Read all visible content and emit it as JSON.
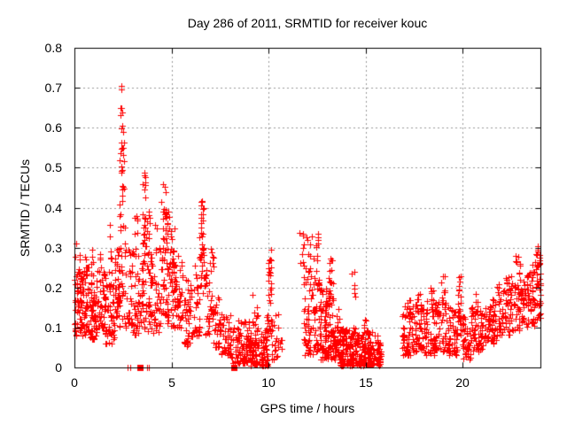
{
  "chart_data": {
    "type": "scatter",
    "title": "Day 286 of 2011, SRMTID for receiver kouc",
    "xlabel": "GPS time / hours",
    "ylabel": "SRMTID / TECUs",
    "xlim": [
      0,
      24
    ],
    "ylim": [
      0,
      0.8
    ],
    "xticks": [
      0,
      5,
      10,
      15,
      20
    ],
    "xticklabels": [
      "0",
      "5",
      "10",
      "15",
      "20"
    ],
    "yticks": [
      0,
      0.1,
      0.2,
      0.3,
      0.4,
      0.5,
      0.6,
      0.7,
      0.8
    ],
    "yticklabels": [
      "0",
      "0.1",
      "0.2",
      "0.3",
      "0.4",
      "0.5",
      "0.6",
      "0.7",
      "0.8"
    ],
    "grid": true,
    "legend": "none",
    "marker": "plus",
    "marker_size_px": 7,
    "marker_color": "#ff0000",
    "grid_color": "#999999",
    "border_color": "#000000",
    "text_color": "#000000",
    "background": "#ffffff",
    "seed": 20110286,
    "clusters": [
      [
        0.0,
        0.35,
        55,
        0.08,
        0.24,
        1.5
      ],
      [
        0.05,
        0.3,
        5,
        0.24,
        0.31,
        1
      ],
      [
        0.35,
        0.75,
        50,
        0.08,
        0.25,
        1.5
      ],
      [
        0.5,
        0.7,
        5,
        0.22,
        0.28,
        1
      ],
      [
        0.75,
        1.15,
        55,
        0.07,
        0.22,
        1.5
      ],
      [
        0.85,
        1.05,
        6,
        0.22,
        0.3,
        1
      ],
      [
        1.15,
        1.6,
        45,
        0.1,
        0.25,
        1.4
      ],
      [
        1.3,
        1.5,
        4,
        0.25,
        0.29,
        1
      ],
      [
        1.6,
        2.05,
        50,
        0.06,
        0.21,
        1.4
      ],
      [
        1.78,
        1.92,
        10,
        0.2,
        0.36,
        1
      ],
      [
        2.05,
        2.35,
        35,
        0.1,
        0.3,
        1.2
      ],
      [
        2.25,
        2.62,
        30,
        0.12,
        0.42,
        1.1
      ],
      [
        2.33,
        2.55,
        22,
        0.42,
        0.62,
        0.9
      ],
      [
        2.36,
        2.48,
        6,
        0.62,
        0.705,
        1
      ],
      [
        2.62,
        2.95,
        30,
        0.1,
        0.3,
        1.4
      ],
      [
        2.95,
        3.35,
        38,
        0.08,
        0.3,
        1.3
      ],
      [
        3.0,
        3.3,
        6,
        0.3,
        0.38,
        1
      ],
      [
        3.35,
        3.6,
        25,
        0.09,
        0.3,
        1.3
      ],
      [
        3.52,
        3.68,
        14,
        0.3,
        0.46,
        1
      ],
      [
        3.56,
        3.66,
        4,
        0.46,
        0.5,
        1
      ],
      [
        3.6,
        3.95,
        30,
        0.08,
        0.3,
        1.3
      ],
      [
        3.65,
        3.9,
        12,
        0.3,
        0.4,
        1.2
      ],
      [
        3.95,
        4.35,
        32,
        0.08,
        0.28,
        1.3
      ],
      [
        4.1,
        4.3,
        4,
        0.28,
        0.36,
        1
      ],
      [
        4.35,
        4.82,
        45,
        0.1,
        0.32,
        1.2
      ],
      [
        4.45,
        4.82,
        22,
        0.32,
        0.43,
        1
      ],
      [
        4.55,
        4.72,
        3,
        0.43,
        0.46,
        1
      ],
      [
        4.82,
        5.2,
        40,
        0.1,
        0.3,
        1.2
      ],
      [
        4.85,
        5.2,
        14,
        0.25,
        0.38,
        1
      ],
      [
        5.2,
        5.6,
        35,
        0.1,
        0.28,
        1.3
      ],
      [
        5.6,
        6.1,
        42,
        0.05,
        0.22,
        1.4
      ],
      [
        6.1,
        6.45,
        30,
        0.08,
        0.28,
        1.3
      ],
      [
        6.45,
        6.75,
        35,
        0.18,
        0.4,
        1.0
      ],
      [
        6.5,
        6.7,
        7,
        0.35,
        0.42,
        1
      ],
      [
        6.75,
        7.05,
        25,
        0.08,
        0.28,
        1.3
      ],
      [
        7.0,
        7.2,
        6,
        0.25,
        0.33,
        1
      ],
      [
        7.05,
        7.55,
        35,
        0.05,
        0.18,
        1.4
      ],
      [
        7.55,
        8.05,
        40,
        0.03,
        0.14,
        1.5
      ],
      [
        8.05,
        8.45,
        25,
        0.01,
        0.1,
        1.5
      ],
      [
        8.45,
        9.0,
        65,
        0.01,
        0.12,
        1.6
      ],
      [
        9.0,
        9.95,
        120,
        0.005,
        0.1,
        1.7
      ],
      [
        9.15,
        9.5,
        10,
        0.1,
        0.19,
        1
      ],
      [
        9.9,
        10.2,
        30,
        0.05,
        0.25,
        1.2
      ],
      [
        9.95,
        10.15,
        6,
        0.25,
        0.3,
        1
      ],
      [
        10.15,
        10.5,
        20,
        0.02,
        0.14,
        1.4
      ],
      [
        10.55,
        10.75,
        4,
        0.02,
        0.07,
        1
      ],
      [
        11.55,
        11.85,
        8,
        0.26,
        0.34,
        1
      ],
      [
        11.8,
        12.3,
        60,
        0.03,
        0.26,
        1.4
      ],
      [
        11.95,
        12.25,
        6,
        0.26,
        0.33,
        1
      ],
      [
        12.3,
        12.65,
        40,
        0.04,
        0.28,
        1.3
      ],
      [
        12.42,
        12.58,
        6,
        0.28,
        0.35,
        1
      ],
      [
        12.65,
        13.1,
        70,
        0.02,
        0.2,
        1.5
      ],
      [
        13.05,
        13.35,
        40,
        0.02,
        0.24,
        1.4
      ],
      [
        13.1,
        13.3,
        6,
        0.24,
        0.28,
        1
      ],
      [
        13.35,
        13.65,
        40,
        0.02,
        0.15,
        1.5
      ],
      [
        13.65,
        14.45,
        110,
        0.005,
        0.1,
        1.6
      ],
      [
        14.25,
        14.5,
        7,
        0.12,
        0.26,
        1
      ],
      [
        14.45,
        15.35,
        120,
        0.005,
        0.09,
        1.6
      ],
      [
        14.9,
        15.1,
        6,
        0.09,
        0.13,
        1
      ],
      [
        15.35,
        15.78,
        45,
        0.005,
        0.08,
        1.5
      ],
      [
        16.85,
        17.35,
        45,
        0.03,
        0.14,
        1.4
      ],
      [
        17.0,
        17.3,
        8,
        0.14,
        0.17,
        1
      ],
      [
        17.35,
        17.95,
        55,
        0.04,
        0.16,
        1.4
      ],
      [
        17.6,
        17.8,
        4,
        0.16,
        0.19,
        1
      ],
      [
        17.95,
        18.55,
        55,
        0.03,
        0.17,
        1.3
      ],
      [
        18.3,
        18.5,
        5,
        0.17,
        0.2,
        1
      ],
      [
        18.55,
        19.3,
        65,
        0.04,
        0.18,
        1.3
      ],
      [
        18.85,
        19.1,
        6,
        0.18,
        0.23,
        1
      ],
      [
        19.3,
        19.72,
        40,
        0.03,
        0.15,
        1.4
      ],
      [
        19.72,
        19.95,
        22,
        0.08,
        0.2,
        1.1
      ],
      [
        19.78,
        19.9,
        5,
        0.2,
        0.23,
        1
      ],
      [
        19.95,
        20.45,
        45,
        0.02,
        0.13,
        1.5
      ],
      [
        20.45,
        21.05,
        55,
        0.04,
        0.15,
        1.4
      ],
      [
        20.6,
        20.8,
        4,
        0.15,
        0.19,
        1
      ],
      [
        21.05,
        21.75,
        60,
        0.06,
        0.17,
        1.3
      ],
      [
        21.75,
        22.45,
        60,
        0.08,
        0.21,
        1.2
      ],
      [
        22.1,
        22.35,
        6,
        0.21,
        0.25,
        1
      ],
      [
        22.45,
        23.15,
        60,
        0.09,
        0.24,
        1.2
      ],
      [
        22.7,
        23.05,
        7,
        0.24,
        0.28,
        1
      ],
      [
        23.15,
        23.7,
        55,
        0.1,
        0.26,
        1.1
      ],
      [
        23.7,
        24.0,
        40,
        0.12,
        0.29,
        1.0
      ],
      [
        23.8,
        24.0,
        5,
        0.27,
        0.31,
        1
      ]
    ],
    "zero_marks": {
      "bars": [
        2.75,
        2.87,
        3.72,
        3.85
      ],
      "blocks": [
        [
          3.25,
          3.55
        ],
        [
          8.06,
          8.38
        ]
      ]
    }
  }
}
